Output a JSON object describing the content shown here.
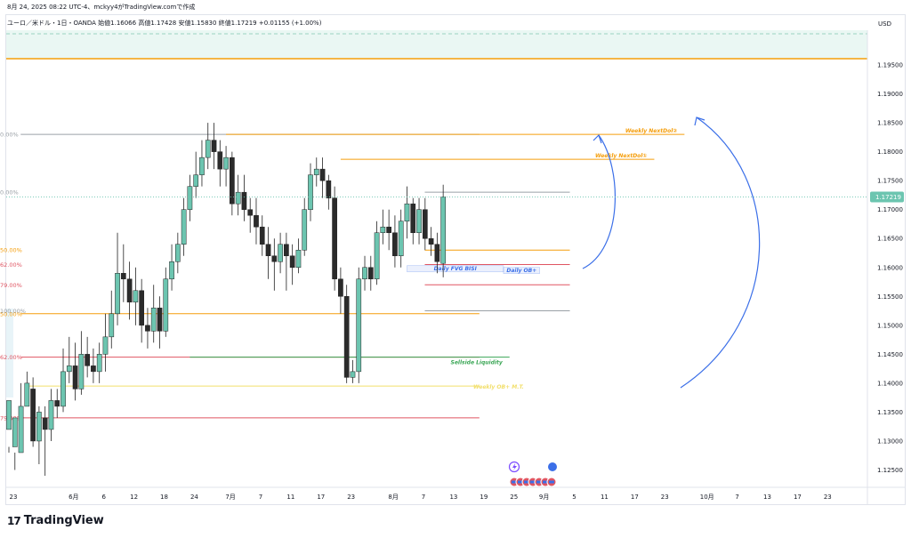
{
  "header": {
    "title": "8月 24, 2025 08:22 UTC-4、mckyy4がTradingView.comで作成"
  },
  "legend": {
    "text": "ユーロ／米ドル・1日・OANDA 始値1.16066 高値1.17428 安値1.15830 終値1.17219 +0.01155 (+1.00%)"
  },
  "currency": "USD",
  "logo": {
    "mark": "17",
    "text": "TradingView"
  },
  "colors": {
    "bull": "#6cc5b0",
    "bear": "#2b2b2b",
    "orange": "#f59e0b",
    "red": "#e05562",
    "green": "#3aa655",
    "gray": "#9aa0a6",
    "blue": "#3b6fe8",
    "yellow": "#f2df6b"
  },
  "chart_data": {
    "type": "candlestick",
    "symbol": "EUR/USD",
    "timeframe": "1D",
    "ylim": [
      1.122,
      1.201
    ],
    "price_ticks": [
      "1.12500",
      "1.13000",
      "1.13500",
      "1.14000",
      "1.14500",
      "1.15000",
      "1.15500",
      "1.16000",
      "1.16500",
      "1.17000",
      "1.17500",
      "1.18000",
      "1.18500",
      "1.19000",
      "1.19500"
    ],
    "price_tick_values": [
      1.125,
      1.13,
      1.135,
      1.14,
      1.145,
      1.15,
      1.155,
      1.16,
      1.165,
      1.17,
      1.175,
      1.18,
      1.185,
      1.19,
      1.195
    ],
    "current_price_label": "1.17219",
    "current_price": 1.17219,
    "x_labels": [
      {
        "label": "23",
        "bar": 0
      },
      {
        "label": "6月",
        "bar": 10
      },
      {
        "label": "6",
        "bar": 15
      },
      {
        "label": "12",
        "bar": 20
      },
      {
        "label": "18",
        "bar": 25
      },
      {
        "label": "24",
        "bar": 30
      },
      {
        "label": "7月",
        "bar": 36
      },
      {
        "label": "7",
        "bar": 41
      },
      {
        "label": "11",
        "bar": 46
      },
      {
        "label": "17",
        "bar": 51
      },
      {
        "label": "23",
        "bar": 56
      },
      {
        "label": "8月",
        "bar": 63
      },
      {
        "label": "7",
        "bar": 68
      },
      {
        "label": "13",
        "bar": 73
      },
      {
        "label": "19",
        "bar": 78
      },
      {
        "label": "25",
        "bar": 83
      },
      {
        "label": "9月",
        "bar": 88
      },
      {
        "label": "5",
        "bar": 93
      },
      {
        "label": "11",
        "bar": 98
      },
      {
        "label": "17",
        "bar": 103
      },
      {
        "label": "23",
        "bar": 108
      },
      {
        "label": "10月",
        "bar": 115
      },
      {
        "label": "7",
        "bar": 120
      },
      {
        "label": "13",
        "bar": 125
      },
      {
        "label": "17",
        "bar": 130
      },
      {
        "label": "23",
        "bar": 135
      }
    ],
    "candles": [
      [
        1.132,
        1.137,
        1.129,
        1.128
      ],
      [
        1.129,
        1.134,
        1.128,
        1.125
      ],
      [
        1.128,
        1.136,
        1.14,
        1.136
      ],
      [
        1.136,
        1.14,
        1.142,
        1.137
      ],
      [
        1.139,
        1.13,
        1.141,
        1.129
      ],
      [
        1.13,
        1.135,
        1.136,
        1.126
      ],
      [
        1.134,
        1.132,
        1.136,
        1.124
      ],
      [
        1.132,
        1.137,
        1.139,
        1.13
      ],
      [
        1.137,
        1.136,
        1.139,
        1.134
      ],
      [
        1.136,
        1.142,
        1.146,
        1.135
      ],
      [
        1.142,
        1.143,
        1.148,
        1.14
      ],
      [
        1.143,
        1.139,
        1.147,
        1.137
      ],
      [
        1.139,
        1.145,
        1.149,
        1.138
      ],
      [
        1.145,
        1.143,
        1.148,
        1.141
      ],
      [
        1.143,
        1.142,
        1.146,
        1.14
      ],
      [
        1.142,
        1.145,
        1.147,
        1.14
      ],
      [
        1.145,
        1.148,
        1.152,
        1.142
      ],
      [
        1.148,
        1.152,
        1.156,
        1.146
      ],
      [
        1.152,
        1.159,
        1.166,
        1.15
      ],
      [
        1.159,
        1.158,
        1.164,
        1.154
      ],
      [
        1.158,
        1.154,
        1.161,
        1.151
      ],
      [
        1.154,
        1.156,
        1.16,
        1.15
      ],
      [
        1.156,
        1.15,
        1.158,
        1.147
      ],
      [
        1.15,
        1.149,
        1.153,
        1.146
      ],
      [
        1.149,
        1.153,
        1.157,
        1.147
      ],
      [
        1.153,
        1.149,
        1.155,
        1.146
      ],
      [
        1.149,
        1.158,
        1.16,
        1.148
      ],
      [
        1.158,
        1.161,
        1.164,
        1.156
      ],
      [
        1.161,
        1.164,
        1.166,
        1.159
      ],
      [
        1.164,
        1.17,
        1.172,
        1.162
      ],
      [
        1.17,
        1.174,
        1.176,
        1.168
      ],
      [
        1.174,
        1.176,
        1.18,
        1.172
      ],
      [
        1.176,
        1.179,
        1.182,
        1.174
      ],
      [
        1.179,
        1.182,
        1.185,
        1.177
      ],
      [
        1.182,
        1.18,
        1.185,
        1.177
      ],
      [
        1.18,
        1.177,
        1.182,
        1.174
      ],
      [
        1.177,
        1.179,
        1.181,
        1.174
      ],
      [
        1.179,
        1.171,
        1.18,
        1.169
      ],
      [
        1.171,
        1.173,
        1.176,
        1.169
      ],
      [
        1.173,
        1.17,
        1.176,
        1.168
      ],
      [
        1.17,
        1.169,
        1.172,
        1.166
      ],
      [
        1.169,
        1.167,
        1.172,
        1.164
      ],
      [
        1.167,
        1.164,
        1.169,
        1.162
      ],
      [
        1.164,
        1.162,
        1.167,
        1.158
      ],
      [
        1.162,
        1.161,
        1.165,
        1.156
      ],
      [
        1.161,
        1.164,
        1.166,
        1.159
      ],
      [
        1.164,
        1.162,
        1.166,
        1.156
      ],
      [
        1.162,
        1.16,
        1.164,
        1.157
      ],
      [
        1.16,
        1.163,
        1.165,
        1.159
      ],
      [
        1.163,
        1.17,
        1.172,
        1.162
      ],
      [
        1.17,
        1.176,
        1.178,
        1.168
      ],
      [
        1.176,
        1.177,
        1.179,
        1.174
      ],
      [
        1.177,
        1.175,
        1.179,
        1.172
      ],
      [
        1.175,
        1.172,
        1.176,
        1.17
      ],
      [
        1.172,
        1.158,
        1.174,
        1.156
      ],
      [
        1.158,
        1.155,
        1.16,
        1.152
      ],
      [
        1.155,
        1.141,
        1.157,
        1.14
      ],
      [
        1.141,
        1.142,
        1.144,
        1.14
      ],
      [
        1.142,
        1.158,
        1.16,
        1.14
      ],
      [
        1.158,
        1.16,
        1.162,
        1.156
      ],
      [
        1.16,
        1.158,
        1.162,
        1.156
      ],
      [
        1.158,
        1.166,
        1.168,
        1.157
      ],
      [
        1.166,
        1.167,
        1.17,
        1.164
      ],
      [
        1.167,
        1.166,
        1.17,
        1.163
      ],
      [
        1.166,
        1.162,
        1.169,
        1.16
      ],
      [
        1.162,
        1.168,
        1.17,
        1.16
      ],
      [
        1.168,
        1.171,
        1.174,
        1.165
      ],
      [
        1.171,
        1.166,
        1.172,
        1.164
      ],
      [
        1.166,
        1.17,
        1.172,
        1.164
      ],
      [
        1.17,
        1.165,
        1.172,
        1.163
      ],
      [
        1.165,
        1.164,
        1.167,
        1.162
      ],
      [
        1.164,
        1.161,
        1.166,
        1.159
      ],
      [
        1.1607,
        1.1722,
        1.1743,
        1.1583
      ]
    ],
    "fib_sets": [
      {
        "name": "left",
        "x_start_bar": -1,
        "x_end_bar": 78,
        "levels": [
          {
            "label": "0.00%",
            "price": 1.183,
            "color": "#9aa0a6",
            "label_bar": 4
          },
          {
            "label": "50.00%",
            "price": 1.152,
            "color": "#f59e0b",
            "label_bar": 4
          },
          {
            "label": "62.00%",
            "price": 1.1445,
            "color": "#e05562",
            "label_bar": 4
          },
          {
            "label": "79.00%",
            "price": 1.134,
            "color": "#e05562",
            "label_bar": 4
          }
        ]
      },
      {
        "name": "right",
        "x_start_bar": 66,
        "x_end_bar": 93,
        "levels": [
          {
            "label": "0.00%",
            "price": 1.173,
            "color": "#9aa0a6",
            "label_bar": 64
          },
          {
            "label": "50.00%",
            "price": 1.163,
            "color": "#f59e0b",
            "label_bar": 64
          },
          {
            "label": "62.00%",
            "price": 1.1605,
            "color": "#e05562",
            "label_bar": 64
          },
          {
            "label": "79.00%",
            "price": 1.157,
            "color": "#e05562",
            "label_bar": 64
          },
          {
            "label": "100.00%",
            "price": 1.1525,
            "color": "#9aa0a6",
            "label_bar": 64
          }
        ]
      }
    ],
    "levels": [
      {
        "label": "Weekly NextDol②",
        "price": 1.183,
        "color": "#f59e0b",
        "x_start_bar": 36,
        "x_end_bar": 112
      },
      {
        "label": "Weekly NextDol①",
        "price": 1.1787,
        "color": "#f59e0b",
        "x_start_bar": 55,
        "x_end_bar": 107
      },
      {
        "label": "Sellside Liquidity",
        "price": 1.1445,
        "color": "#3aa655",
        "x_start_bar": 30,
        "x_end_bar": 83
      },
      {
        "label": "Weekly OB+ M.T.",
        "price": 1.1395,
        "color": "#f2df6b",
        "x_start_bar": 3,
        "x_end_bar": 78
      },
      {
        "label": "Daily FVG BISI",
        "price": 1.1597,
        "color": "#3b6fe8",
        "x_start_bar": 66,
        "x_end_bar": 82
      },
      {
        "label": "Daily OB+",
        "price": 1.1594,
        "color": "#3b6fe8",
        "x_start_bar": 82,
        "x_end_bar": 88
      }
    ]
  }
}
